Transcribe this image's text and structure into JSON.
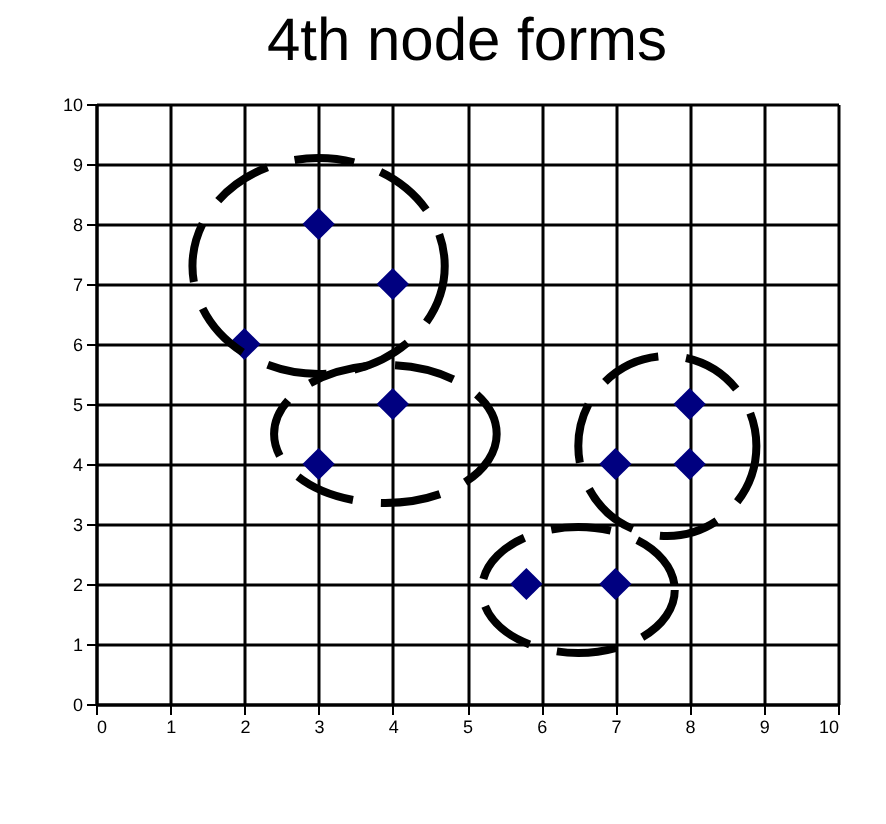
{
  "chart_data": {
    "type": "scatter",
    "title": "4th node forms",
    "x": [
      2,
      3,
      4,
      3,
      4,
      7,
      8,
      8,
      5.8,
      7
    ],
    "series": [
      {
        "color": "#000080",
        "values": [
          6,
          8,
          7,
          4,
          5,
          4,
          5,
          4,
          2,
          2
        ]
      }
    ],
    "xlim": [
      0,
      10
    ],
    "xticks": [
      0,
      1,
      2,
      3,
      4,
      5,
      6,
      7,
      8,
      9,
      10
    ],
    "ylim": [
      0,
      10
    ],
    "yticks": [
      0,
      1,
      2,
      3,
      4,
      5,
      6,
      7,
      8,
      9,
      10
    ],
    "grid": true,
    "marker": "diamond"
  }
}
